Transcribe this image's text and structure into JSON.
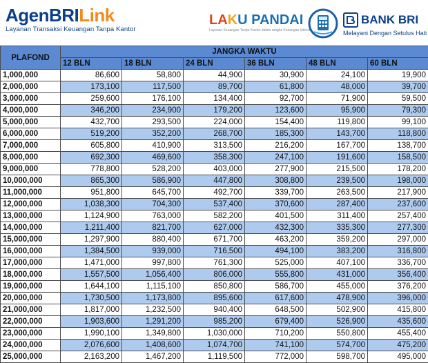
{
  "header": {
    "agen_brand_part1": "AgenBRI",
    "agen_brand_part2": "Link",
    "agen_tagline": "Layanan Transaksi Keuangan Tanpa Kantor",
    "laku_part1": "LA",
    "laku_part2": "K",
    "laku_part3": "U PANDAI",
    "laku_subtitle": "Layanan Keuangan Tanpa Kantor dalam rangka Keuangan Inklusif",
    "bank_name": "BANK BRI",
    "bank_tagline": "Melayani Dengan Setulus Hati"
  },
  "table": {
    "plafond_header": "PLAFOND",
    "tenor_header": "JANGKA WAKTU",
    "columns": [
      "12 BLN",
      "18 BLN",
      "24 BLN",
      "36 BLN",
      "48 BLN",
      "60 BLN"
    ],
    "rows": [
      {
        "plafond": "1,000,000",
        "values": [
          "86,600",
          "58,800",
          "44,900",
          "30,900",
          "24,100",
          "19,900"
        ]
      },
      {
        "plafond": "2,000,000",
        "values": [
          "173,100",
          "117,500",
          "89,700",
          "61,800",
          "48,000",
          "39,700"
        ]
      },
      {
        "plafond": "3,000,000",
        "values": [
          "259,600",
          "176,100",
          "134,400",
          "92,700",
          "71,900",
          "59,500"
        ]
      },
      {
        "plafond": "4,000,000",
        "values": [
          "346,200",
          "234,900",
          "179,200",
          "123,600",
          "95,900",
          "79,300"
        ]
      },
      {
        "plafond": "5,000,000",
        "values": [
          "432,700",
          "293,500",
          "224,000",
          "154,400",
          "119,800",
          "99,100"
        ]
      },
      {
        "plafond": "6,000,000",
        "values": [
          "519,200",
          "352,200",
          "268,700",
          "185,300",
          "143,700",
          "118,800"
        ]
      },
      {
        "plafond": "7,000,000",
        "values": [
          "605,800",
          "410,900",
          "313,500",
          "216,200",
          "167,700",
          "138,700"
        ]
      },
      {
        "plafond": "8,000,000",
        "values": [
          "692,300",
          "469,600",
          "358,300",
          "247,100",
          "191,600",
          "158,500"
        ]
      },
      {
        "plafond": "9,000,000",
        "values": [
          "778,800",
          "528,200",
          "403,000",
          "277,900",
          "215,500",
          "178,200"
        ]
      },
      {
        "plafond": "10,000,000",
        "values": [
          "865,300",
          "586,900",
          "447,800",
          "308,800",
          "239,500",
          "198,000"
        ]
      },
      {
        "plafond": "11,000,000",
        "values": [
          "951,800",
          "645,700",
          "492,700",
          "339,700",
          "263,500",
          "217,900"
        ]
      },
      {
        "plafond": "12,000,000",
        "values": [
          "1,038,300",
          "704,300",
          "537,400",
          "370,600",
          "287,400",
          "237,600"
        ]
      },
      {
        "plafond": "13,000,000",
        "values": [
          "1,124,900",
          "763,000",
          "582,200",
          "401,500",
          "311,400",
          "257,400"
        ]
      },
      {
        "plafond": "14,000,000",
        "values": [
          "1,211,400",
          "821,700",
          "627,000",
          "432,300",
          "335,300",
          "277,300"
        ]
      },
      {
        "plafond": "15,000,000",
        "values": [
          "1,297,900",
          "880,400",
          "671,700",
          "463,200",
          "359,200",
          "297,000"
        ]
      },
      {
        "plafond": "16,000,000",
        "values": [
          "1,384,500",
          "939,000",
          "716,500",
          "494,100",
          "383,200",
          "316,800"
        ]
      },
      {
        "plafond": "17,000,000",
        "values": [
          "1,471,000",
          "997,800",
          "761,300",
          "525,000",
          "407,100",
          "336,700"
        ]
      },
      {
        "plafond": "18,000,000",
        "values": [
          "1,557,500",
          "1,056,400",
          "806,000",
          "555,800",
          "431,000",
          "356,400"
        ]
      },
      {
        "plafond": "19,000,000",
        "values": [
          "1,644,100",
          "1,115,100",
          "850,800",
          "586,700",
          "455,000",
          "376,200"
        ]
      },
      {
        "plafond": "20,000,000",
        "values": [
          "1,730,500",
          "1,173,800",
          "895,600",
          "617,600",
          "478,900",
          "396,000"
        ]
      },
      {
        "plafond": "21,000,000",
        "values": [
          "1,817,000",
          "1,232,500",
          "940,400",
          "648,500",
          "502,900",
          "415,800"
        ]
      },
      {
        "plafond": "22,000,000",
        "values": [
          "1,903,600",
          "1,291,200",
          "985,200",
          "679,400",
          "526,900",
          "435,600"
        ]
      },
      {
        "plafond": "23,000,000",
        "values": [
          "1,990,100",
          "1,349,800",
          "1,030,000",
          "710,200",
          "550,800",
          "455,400"
        ]
      },
      {
        "plafond": "24,000,000",
        "values": [
          "2,076,600",
          "1,408,600",
          "1,074,700",
          "741,100",
          "574,700",
          "475,200"
        ]
      },
      {
        "plafond": "25,000,000",
        "values": [
          "2,163,200",
          "1,467,200",
          "1,119,500",
          "772,000",
          "598,700",
          "495,000"
        ]
      }
    ]
  }
}
